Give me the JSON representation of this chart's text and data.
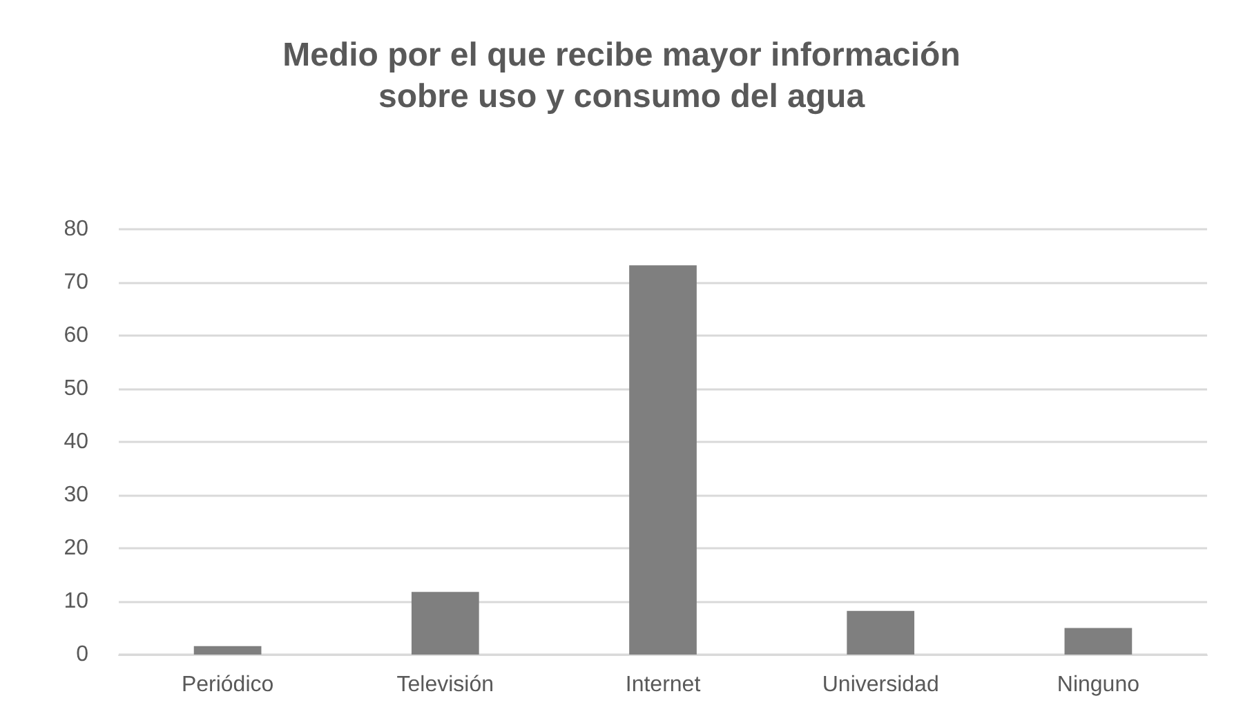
{
  "chart_data": {
    "type": "bar",
    "title": "Medio por el que recibe mayor información\nsobre uso y consumo del agua",
    "categories": [
      "Periódico",
      "Televisión",
      "Internet",
      "Universidad",
      "Ninguno"
    ],
    "values": [
      1.6,
      11.8,
      73.2,
      8.2,
      5.0
    ],
    "color": "#7f7f7f",
    "ylim": [
      0,
      80
    ],
    "yticks": [
      0,
      10,
      20,
      30,
      40,
      50,
      60,
      70,
      80
    ],
    "grid": "y"
  }
}
